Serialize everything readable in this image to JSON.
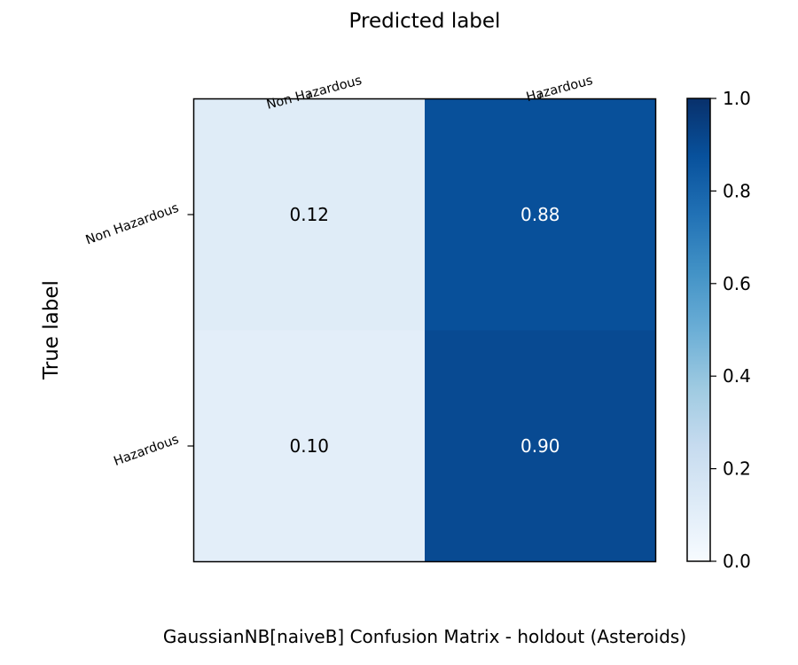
{
  "chart_data": {
    "type": "heatmap",
    "title": "GaussianNB[naiveB] Confusion Matrix - holdout (Asteroids)",
    "xlabel": "Predicted label",
    "ylabel": "True label",
    "x_categories": [
      "Non Hazardous",
      "Hazardous"
    ],
    "y_categories": [
      "Non Hazardous",
      "Hazardous"
    ],
    "values": [
      [
        0.12,
        0.88
      ],
      [
        0.1,
        0.9
      ]
    ],
    "cell_labels": [
      [
        "0.12",
        "0.88"
      ],
      [
        "0.10",
        "0.90"
      ]
    ],
    "colorbar": {
      "range": [
        0.0,
        1.0
      ],
      "ticks": [
        "0.0",
        "0.2",
        "0.4",
        "0.6",
        "0.8",
        "1.0"
      ],
      "colormap": "Blues"
    },
    "x_axis_position": "top",
    "grid": false
  }
}
